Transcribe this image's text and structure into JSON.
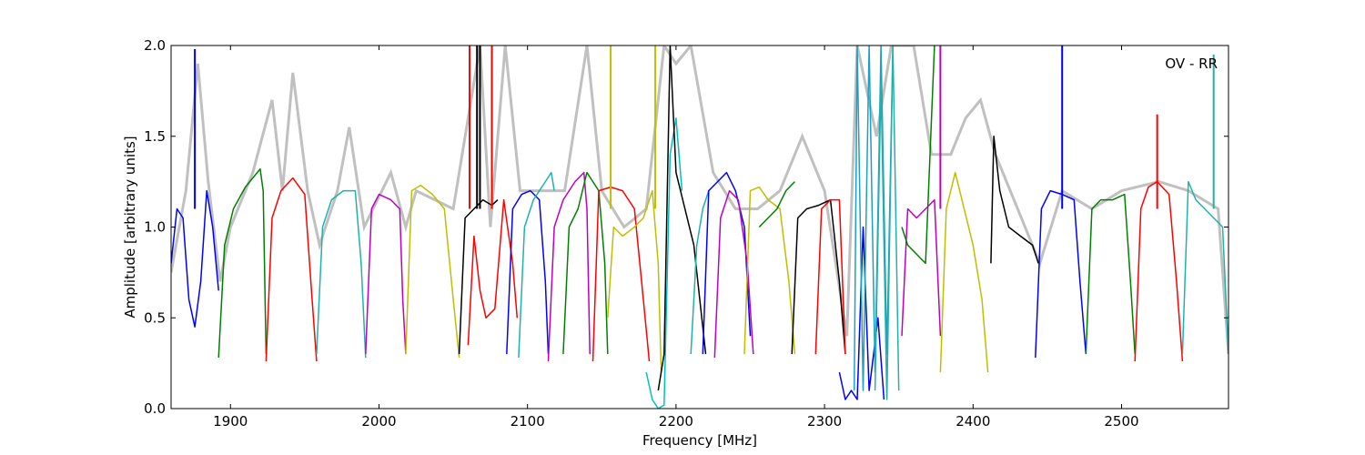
{
  "chart_data": {
    "type": "line",
    "xlabel": "Frequency [MHz]",
    "ylabel": "Amplitude [arbitrary units]",
    "annotation": "OV - RR",
    "xlim": [
      1860,
      2572
    ],
    "ylim": [
      0.0,
      2.0
    ],
    "x_ticks": [
      1900,
      2000,
      2100,
      2200,
      2300,
      2400,
      2500
    ],
    "y_ticks": [
      0.0,
      0.5,
      1.0,
      1.5,
      2.0
    ],
    "y_tick_labels": [
      "0.0",
      "0.5",
      "1.0",
      "1.5",
      "2.0"
    ],
    "grid": false,
    "background_color": "#c0c0c0",
    "background_series": [
      [
        1860,
        0.75
      ],
      [
        1870,
        1.2
      ],
      [
        1878,
        1.9
      ],
      [
        1885,
        1.25
      ],
      [
        1893,
        0.7
      ],
      [
        1900,
        1.0
      ],
      [
        1915,
        1.3
      ],
      [
        1928,
        1.7
      ],
      [
        1935,
        1.2
      ],
      [
        1942,
        1.85
      ],
      [
        1952,
        1.2
      ],
      [
        1960,
        0.9
      ],
      [
        1972,
        1.2
      ],
      [
        1980,
        1.55
      ],
      [
        1990,
        1.0
      ],
      [
        2008,
        1.3
      ],
      [
        2018,
        1.0
      ],
      [
        2025,
        1.2
      ],
      [
        2050,
        1.1
      ],
      [
        2062,
        1.7
      ],
      [
        2068,
        2.0
      ],
      [
        2075,
        1.0
      ],
      [
        2085,
        2.0
      ],
      [
        2095,
        1.2
      ],
      [
        2110,
        1.2
      ],
      [
        2125,
        1.2
      ],
      [
        2140,
        2.0
      ],
      [
        2150,
        1.2
      ],
      [
        2165,
        1.0
      ],
      [
        2180,
        1.1
      ],
      [
        2192,
        2.0
      ],
      [
        2200,
        1.9
      ],
      [
        2210,
        2.0
      ],
      [
        2225,
        1.3
      ],
      [
        2240,
        1.1
      ],
      [
        2255,
        1.1
      ],
      [
        2270,
        1.2
      ],
      [
        2285,
        1.5
      ],
      [
        2300,
        1.2
      ],
      [
        2315,
        0.4
      ],
      [
        2322,
        2.0
      ],
      [
        2335,
        1.5
      ],
      [
        2345,
        2.0
      ],
      [
        2360,
        2.0
      ],
      [
        2372,
        1.4
      ],
      [
        2385,
        1.4
      ],
      [
        2395,
        1.6
      ],
      [
        2405,
        1.7
      ],
      [
        2415,
        1.4
      ],
      [
        2430,
        1.1
      ],
      [
        2445,
        0.8
      ],
      [
        2460,
        1.2
      ],
      [
        2480,
        1.1
      ],
      [
        2500,
        1.2
      ],
      [
        2525,
        1.25
      ],
      [
        2545,
        1.2
      ],
      [
        2565,
        1.1
      ],
      [
        2572,
        0.3
      ]
    ],
    "series": [
      {
        "color": "#0000ff",
        "x": [
          1860,
          1864,
          1868,
          1872,
          1876,
          1880,
          1884,
          1888,
          1892
        ],
        "y": [
          0.8,
          1.1,
          1.05,
          0.6,
          0.45,
          0.7,
          1.2,
          1.0,
          0.65
        ],
        "spikes": [
          [
            1876,
            1.98
          ]
        ]
      },
      {
        "color": "#008000",
        "x": [
          1892,
          1896,
          1902,
          1910,
          1918,
          1920,
          1922,
          1924
        ],
        "y": [
          0.28,
          0.9,
          1.1,
          1.22,
          1.3,
          1.32,
          1.2,
          0.3
        ]
      },
      {
        "color": "#ff0000",
        "x": [
          1924,
          1928,
          1934,
          1942,
          1950,
          1955,
          1958
        ],
        "y": [
          0.26,
          1.05,
          1.2,
          1.27,
          1.18,
          0.6,
          0.26
        ]
      },
      {
        "color": "#20b2aa",
        "x": [
          1958,
          1962,
          1968,
          1976,
          1984,
          1988,
          1991
        ],
        "y": [
          0.3,
          1.0,
          1.15,
          1.2,
          1.2,
          0.8,
          0.28
        ]
      },
      {
        "color": "#bf00bf",
        "x": [
          1991,
          1995,
          2000,
          2008,
          2014,
          2016,
          2018
        ],
        "y": [
          0.3,
          1.1,
          1.18,
          1.15,
          1.1,
          0.6,
          0.3
        ]
      },
      {
        "color": "#bfbf00",
        "x": [
          2018,
          2022,
          2028,
          2036,
          2044,
          2050,
          2054
        ],
        "y": [
          0.3,
          1.2,
          1.23,
          1.18,
          1.1,
          0.6,
          0.28
        ]
      },
      {
        "color": "#000000",
        "x": [
          2054,
          2058,
          2064,
          2070,
          2076,
          2080
        ],
        "y": [
          0.3,
          1.05,
          1.1,
          1.15,
          1.12,
          1.15
        ],
        "spikes": [
          [
            2066,
            2.0
          ],
          [
            2068,
            2.0
          ]
        ]
      },
      {
        "color": "#ff0000",
        "x": [
          2060,
          2064,
          2068,
          2072,
          2078,
          2084,
          2090,
          2093
        ],
        "y": [
          0.35,
          0.95,
          0.65,
          0.5,
          0.55,
          1.15,
          0.8,
          0.5
        ],
        "spikes": [
          [
            2061,
            2.0
          ],
          [
            2076,
            2.0
          ]
        ]
      },
      {
        "color": "#0000ff",
        "x": [
          2086,
          2090,
          2096,
          2102,
          2108,
          2112,
          2114
        ],
        "y": [
          0.3,
          1.1,
          1.18,
          1.2,
          1.15,
          0.7,
          0.3
        ]
      },
      {
        "color": "#20b2aa",
        "x": [
          2094,
          2098,
          2104,
          2112,
          2116,
          2118
        ],
        "y": [
          0.28,
          1.0,
          1.15,
          1.25,
          1.3,
          1.2
        ]
      },
      {
        "color": "#bf00bf",
        "x": [
          2114,
          2118,
          2124,
          2132,
          2138,
          2140,
          2142
        ],
        "y": [
          0.26,
          1.0,
          1.15,
          1.25,
          1.3,
          1.1,
          0.3
        ]
      },
      {
        "color": "#008000",
        "x": [
          2124,
          2128,
          2134,
          2140,
          2148,
          2152,
          2154
        ],
        "y": [
          0.3,
          1.0,
          1.1,
          1.3,
          1.2,
          0.8,
          0.3
        ]
      },
      {
        "color": "#ff0000",
        "x": [
          2144,
          2148,
          2156,
          2164,
          2172,
          2178,
          2182
        ],
        "y": [
          0.26,
          1.2,
          1.22,
          1.2,
          1.1,
          0.6,
          0.26
        ]
      },
      {
        "color": "#bfbf00",
        "x": [
          2154,
          2158,
          2164,
          2172,
          2178,
          2184,
          2188,
          2190
        ],
        "y": [
          0.5,
          1.0,
          0.95,
          1.0,
          1.05,
          1.2,
          0.8,
          0.2
        ],
        "spikes": [
          [
            2156,
            2.0
          ],
          [
            2186,
            2.0
          ]
        ]
      },
      {
        "color": "#00bfbf",
        "x": [
          2180,
          2184,
          2188,
          2192,
          2196,
          2200,
          2204
        ],
        "y": [
          0.2,
          0.05,
          0.0,
          0.02,
          1.4,
          1.6,
          1.2
        ]
      },
      {
        "color": "#000000",
        "x": [
          2188,
          2192,
          2196,
          2200,
          2206,
          2212,
          2216,
          2220
        ],
        "y": [
          0.1,
          0.3,
          2.0,
          1.3,
          1.1,
          0.9,
          0.6,
          0.3
        ]
      },
      {
        "color": "#20b2aa",
        "x": [
          2210,
          2214,
          2218,
          2222
        ],
        "y": [
          0.3,
          0.9,
          1.1,
          1.2
        ]
      },
      {
        "color": "#0000ff",
        "x": [
          2218,
          2222,
          2228,
          2234,
          2240,
          2246,
          2250
        ],
        "y": [
          0.3,
          1.2,
          1.25,
          1.3,
          1.2,
          1.0,
          0.4
        ]
      },
      {
        "color": "#bf00bf",
        "x": [
          2226,
          2230,
          2236,
          2242,
          2248,
          2252
        ],
        "y": [
          0.28,
          1.05,
          1.2,
          1.15,
          0.8,
          0.3
        ]
      },
      {
        "color": "#bfbf00",
        "x": [
          2246,
          2250,
          2256,
          2262,
          2270,
          2276,
          2280
        ],
        "y": [
          0.3,
          1.2,
          1.22,
          1.15,
          1.1,
          0.7,
          0.3
        ]
      },
      {
        "color": "#008000",
        "x": [
          2256,
          2262,
          2268,
          2274,
          2280
        ],
        "y": [
          1.0,
          1.05,
          1.1,
          1.2,
          1.25
        ]
      },
      {
        "color": "#000000",
        "x": [
          2278,
          2282,
          2288,
          2296,
          2304,
          2310,
          2314
        ],
        "y": [
          0.3,
          1.05,
          1.1,
          1.12,
          1.15,
          0.7,
          0.3
        ]
      },
      {
        "color": "#ff0000",
        "x": [
          2294,
          2298,
          2304,
          2310,
          2314
        ],
        "y": [
          0.3,
          1.1,
          1.15,
          1.15,
          0.3
        ]
      },
      {
        "color": "#0000ff",
        "x": [
          2310,
          2314,
          2318,
          2322,
          2326,
          2330,
          2336,
          2340
        ],
        "y": [
          0.2,
          0.05,
          0.1,
          0.05,
          1.0,
          0.1,
          0.5,
          0.05
        ]
      },
      {
        "color": "#1f9fbf",
        "x": [
          2320,
          2322,
          2326,
          2330,
          2334,
          2338,
          2342,
          2346
        ],
        "y": [
          0.1,
          2.0,
          0.1,
          2.0,
          0.2,
          2.0,
          0.3,
          2.0
        ]
      },
      {
        "color": "#20b2aa",
        "x": [
          2334,
          2338,
          2342,
          2346,
          2350
        ],
        "y": [
          0.1,
          1.8,
          0.05,
          2.0,
          0.1
        ]
      },
      {
        "color": "#bf00bf",
        "x": [
          2352,
          2356,
          2362,
          2368,
          2374,
          2378
        ],
        "y": [
          0.4,
          1.1,
          1.05,
          1.1,
          1.15,
          0.4
        ],
        "spikes": [
          [
            2378,
            2.0
          ]
        ]
      },
      {
        "color": "#008000",
        "x": [
          2352,
          2356,
          2362,
          2368,
          2374
        ],
        "y": [
          1.0,
          0.9,
          0.85,
          0.8,
          2.0
        ]
      },
      {
        "color": "#bfbf00",
        "x": [
          2378,
          2382,
          2388,
          2394,
          2400,
          2406,
          2410
        ],
        "y": [
          0.2,
          1.1,
          1.3,
          1.1,
          0.9,
          0.6,
          0.2
        ]
      },
      {
        "color": "#000000",
        "x": [
          2412,
          2414,
          2418,
          2424,
          2432,
          2440,
          2444
        ],
        "y": [
          0.8,
          1.5,
          1.2,
          1.0,
          0.95,
          0.9,
          0.8
        ]
      },
      {
        "color": "#0000ff",
        "x": [
          2442,
          2446,
          2452,
          2460,
          2468,
          2472,
          2476
        ],
        "y": [
          0.28,
          1.1,
          1.2,
          1.18,
          1.15,
          0.7,
          0.3
        ],
        "spikes": [
          [
            2460,
            2.0
          ]
        ]
      },
      {
        "color": "#008000",
        "x": [
          2476,
          2480,
          2486,
          2494,
          2502,
          2506,
          2509
        ],
        "y": [
          0.3,
          1.1,
          1.15,
          1.15,
          1.18,
          0.7,
          0.3
        ]
      },
      {
        "color": "#ff0000",
        "x": [
          2509,
          2513,
          2518,
          2524,
          2532,
          2537,
          2541
        ],
        "y": [
          0.26,
          1.1,
          1.22,
          1.25,
          1.18,
          0.7,
          0.26
        ],
        "spikes": [
          [
            2524,
            1.62
          ]
        ]
      },
      {
        "color": "#20b2aa",
        "x": [
          2541,
          2545,
          2550,
          2556,
          2562,
          2568,
          2572
        ],
        "y": [
          0.3,
          1.25,
          1.15,
          1.1,
          1.05,
          1.0,
          0.3
        ],
        "spikes": [
          [
            2562,
            1.95
          ]
        ]
      }
    ]
  }
}
